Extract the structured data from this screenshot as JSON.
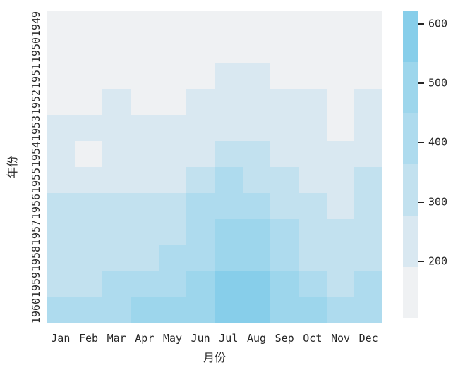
{
  "chart_data": {
    "type": "heatmap",
    "title": "",
    "xlabel": "月份",
    "ylabel": "年份",
    "x_categories": [
      "Jan",
      "Feb",
      "Mar",
      "Apr",
      "May",
      "Jun",
      "Jul",
      "Aug",
      "Sep",
      "Oct",
      "Nov",
      "Dec"
    ],
    "y_categories": [
      "1949",
      "1950",
      "1951",
      "1952",
      "1953",
      "1954",
      "1955",
      "1956",
      "1957",
      "1958",
      "1959",
      "1960"
    ],
    "values": [
      [
        112,
        118,
        132,
        129,
        121,
        135,
        148,
        148,
        136,
        119,
        104,
        118
      ],
      [
        115,
        126,
        141,
        135,
        125,
        149,
        170,
        170,
        158,
        133,
        114,
        140
      ],
      [
        145,
        150,
        178,
        163,
        172,
        178,
        199,
        199,
        184,
        162,
        146,
        166
      ],
      [
        171,
        180,
        193,
        181,
        183,
        218,
        230,
        242,
        209,
        191,
        172,
        194
      ],
      [
        196,
        196,
        236,
        235,
        229,
        243,
        264,
        272,
        237,
        211,
        180,
        201
      ],
      [
        204,
        188,
        235,
        227,
        234,
        264,
        302,
        293,
        259,
        229,
        203,
        229
      ],
      [
        242,
        233,
        267,
        269,
        270,
        315,
        364,
        347,
        312,
        274,
        237,
        278
      ],
      [
        284,
        277,
        317,
        313,
        318,
        374,
        413,
        405,
        355,
        306,
        271,
        306
      ],
      [
        315,
        301,
        356,
        348,
        355,
        422,
        465,
        467,
        404,
        347,
        305,
        336
      ],
      [
        340,
        318,
        362,
        348,
        363,
        435,
        491,
        505,
        404,
        359,
        310,
        337
      ],
      [
        360,
        342,
        406,
        396,
        420,
        472,
        548,
        559,
        463,
        407,
        362,
        405
      ],
      [
        417,
        391,
        419,
        461,
        472,
        535,
        622,
        606,
        508,
        461,
        390,
        432
      ]
    ],
    "vmin": 104,
    "vmax": 622,
    "n_color_bins": 6,
    "palette": [
      "#eff1f3",
      "#d9e8f1",
      "#c2e1ef",
      "#aedbee",
      "#9dd6ec",
      "#87ceea"
    ],
    "colorbar_ticks": [
      600,
      500,
      400,
      300,
      200
    ],
    "legend_position": "right",
    "grid": false,
    "text_color": "#262626"
  }
}
